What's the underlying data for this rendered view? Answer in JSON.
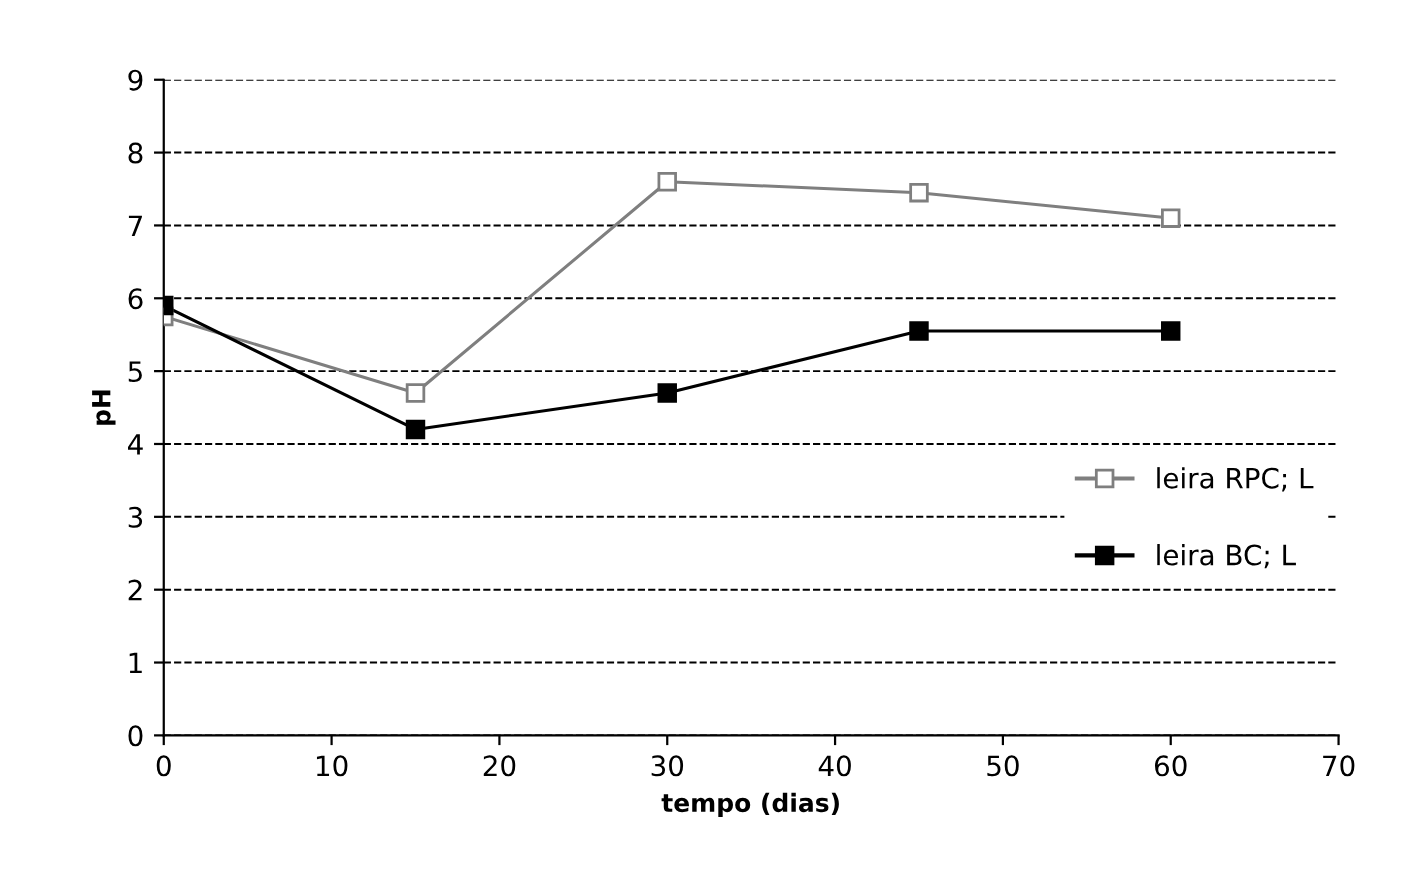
{
  "chart_data": {
    "type": "line",
    "xlabel": "tempo (dias)",
    "ylabel": "pH",
    "x": [
      0,
      15,
      30,
      45,
      60
    ],
    "series": [
      {
        "name": "leira RPC; L",
        "color": "#7f7f7f",
        "values": [
          5.75,
          4.7,
          7.6,
          7.45,
          7.1
        ]
      },
      {
        "name": "leira BC; L",
        "color": "#000000",
        "values": [
          5.9,
          4.2,
          4.7,
          5.55,
          5.55
        ]
      }
    ],
    "xlim": [
      0,
      70
    ],
    "xticks": [
      0,
      10,
      20,
      30,
      40,
      50,
      60,
      70
    ],
    "ylim": [
      0,
      9
    ],
    "yticks": [
      0,
      1,
      2,
      3,
      4,
      5,
      6,
      7,
      8,
      9
    ],
    "grid": "y",
    "legend": "right",
    "marker": "square",
    "line_style": "solid"
  }
}
